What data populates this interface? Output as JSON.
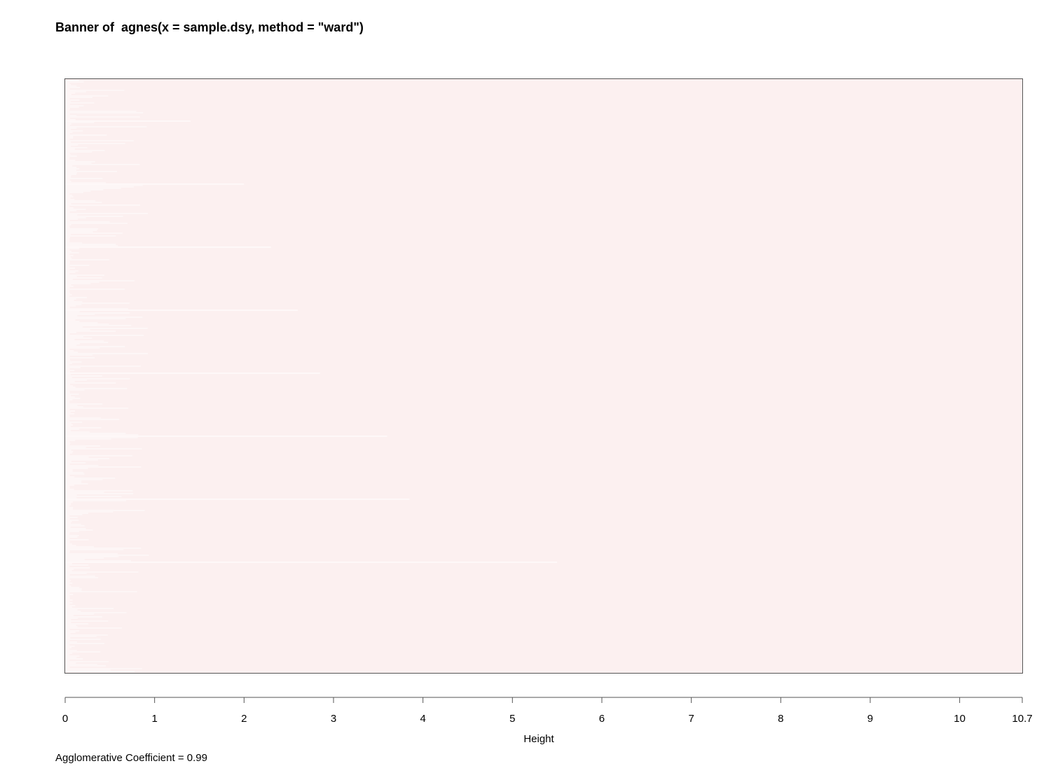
{
  "chart_data": {
    "type": "bar",
    "subtype": "agnes-banner",
    "title": "Banner of  agnes(x = sample.dsy, method = \"ward\")",
    "xlabel": "Height",
    "ylabel": "",
    "xlim": [
      0,
      10.7
    ],
    "x_ticks": [
      0,
      1,
      2,
      3,
      4,
      5,
      6,
      7,
      8,
      9,
      10,
      10.7
    ],
    "x_tick_labels": [
      "0",
      "1",
      "2",
      "3",
      "4",
      "5",
      "6",
      "7",
      "8",
      "9",
      "10",
      "10.7"
    ],
    "grid": false,
    "colors": {
      "bar": "#fcf0f0",
      "background": "#ffffff",
      "frame": "#555555"
    },
    "highlighted_merge_heights": [
      1.4,
      2.0,
      2.3,
      2.6,
      2.85,
      3.6,
      3.85,
      5.5
    ],
    "agglomerative_coefficient_label": "Agglomerative Coefficient = ",
    "agglomerative_coefficient": "0.99"
  }
}
